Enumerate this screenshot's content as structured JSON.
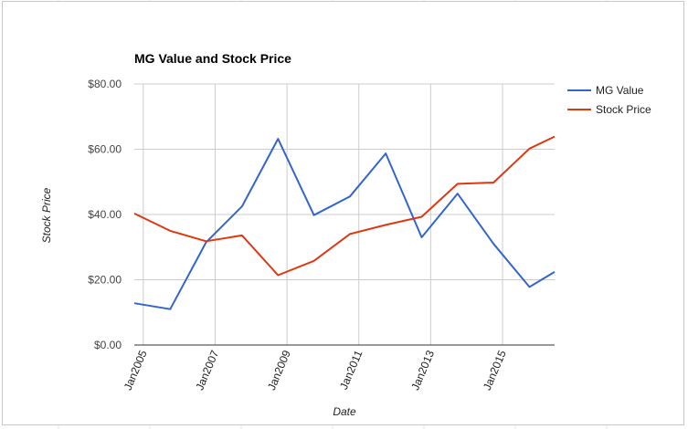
{
  "colors": {
    "mg_value": "#3366cc",
    "stock_price": "#dc3912",
    "gridline": "#cccccc",
    "axis": "#333333"
  },
  "chart_data": {
    "type": "line",
    "title": "MG Value and Stock Price",
    "xlabel": "Date",
    "ylabel": "Stock Price",
    "ylim": [
      0,
      80
    ],
    "grid": true,
    "legend_position": "right",
    "y_ticks": [
      "$0.00",
      "$20.00",
      "$40.00",
      "$60.00",
      "$80.00"
    ],
    "y_tick_values": [
      0,
      20,
      40,
      60,
      80
    ],
    "x_ticks": [
      "Jan2005",
      "Jan2007",
      "Jan2009",
      "Jan2011",
      "Jan2013",
      "Jan2015"
    ],
    "x_tick_values": [
      2005.0,
      2007.0,
      2009.0,
      2011.0,
      2013.0,
      2015.0
    ],
    "xlim": [
      2004.75,
      2016.45
    ],
    "x": [
      2004.75,
      2005.75,
      2006.75,
      2007.75,
      2008.75,
      2009.75,
      2010.75,
      2011.75,
      2012.75,
      2013.75,
      2014.75,
      2015.75,
      2016.45
    ],
    "series": [
      {
        "name": "MG Value",
        "color_key": "mg_value",
        "values": [
          12.8,
          11.0,
          31.5,
          42.5,
          63.2,
          39.8,
          45.5,
          58.7,
          33.0,
          46.4,
          31.0,
          17.8,
          22.4
        ]
      },
      {
        "name": "Stock Price",
        "color_key": "stock_price",
        "values": [
          40.3,
          35.0,
          31.8,
          33.6,
          21.4,
          25.8,
          34.0,
          36.8,
          39.3,
          49.4,
          49.8,
          60.2,
          63.9
        ]
      }
    ]
  }
}
